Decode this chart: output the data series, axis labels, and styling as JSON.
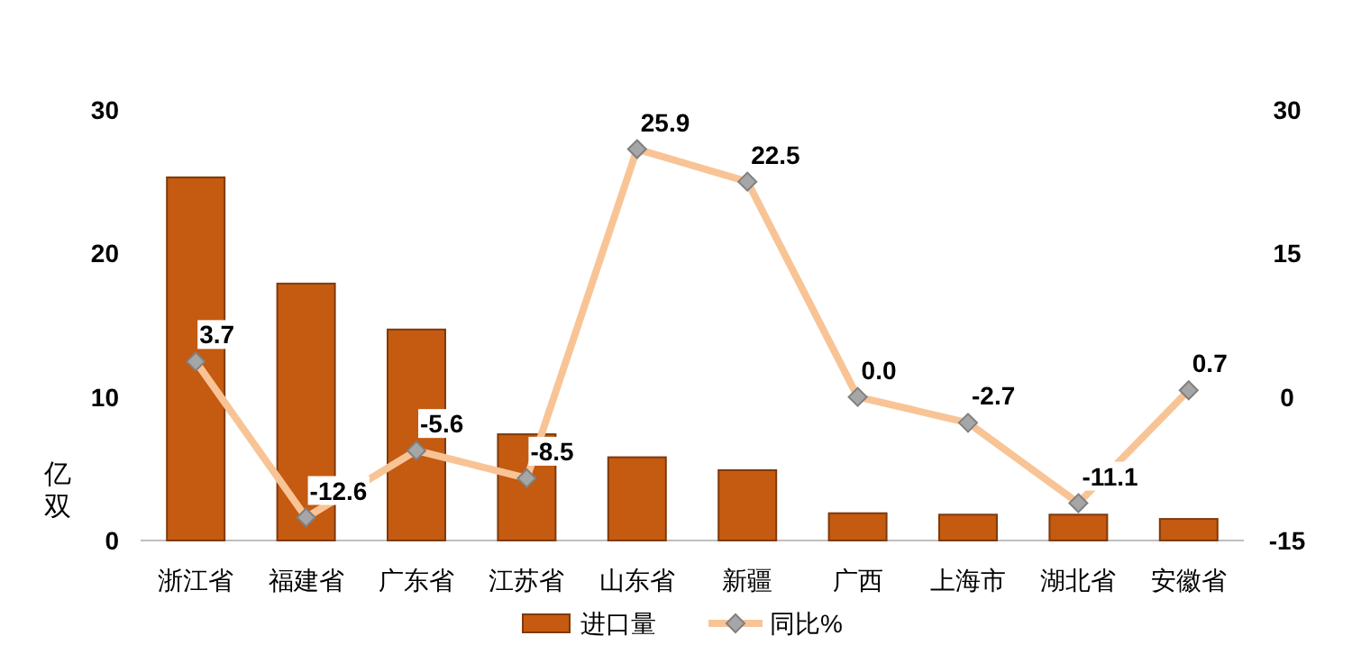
{
  "chart_data": {
    "type": "bar",
    "categories": [
      "浙江省",
      "福建省",
      "广东省",
      "江苏省",
      "山东省",
      "新疆",
      "广西",
      "上海市",
      "湖北省",
      "安徽省"
    ],
    "ylabel": "亿双",
    "ylim": [
      0,
      30
    ],
    "yticks": [
      0,
      10,
      20,
      30
    ],
    "y2lim": [
      -15,
      30
    ],
    "y2ticks": [
      -15,
      0,
      15,
      30
    ],
    "legend": "bottom",
    "grid": false,
    "series": [
      {
        "name": "进口量",
        "type": "bar",
        "color": "#c55a11",
        "values": [
          25.3,
          17.9,
          14.7,
          7.4,
          5.8,
          4.9,
          1.9,
          1.8,
          1.8,
          1.5
        ]
      },
      {
        "name": "同比%",
        "type": "line",
        "axis": "y2",
        "color": "#f8c496",
        "marker": "diamond",
        "values": [
          3.7,
          -12.6,
          -5.6,
          -8.5,
          25.9,
          22.5,
          0.0,
          -2.7,
          -11.1,
          0.7
        ],
        "value_labels": [
          "3.7",
          "-12.6",
          "-5.6",
          "-8.5",
          "25.9",
          "22.5",
          "0.0",
          "-2.7",
          "-11.1",
          "0.7"
        ]
      }
    ]
  }
}
